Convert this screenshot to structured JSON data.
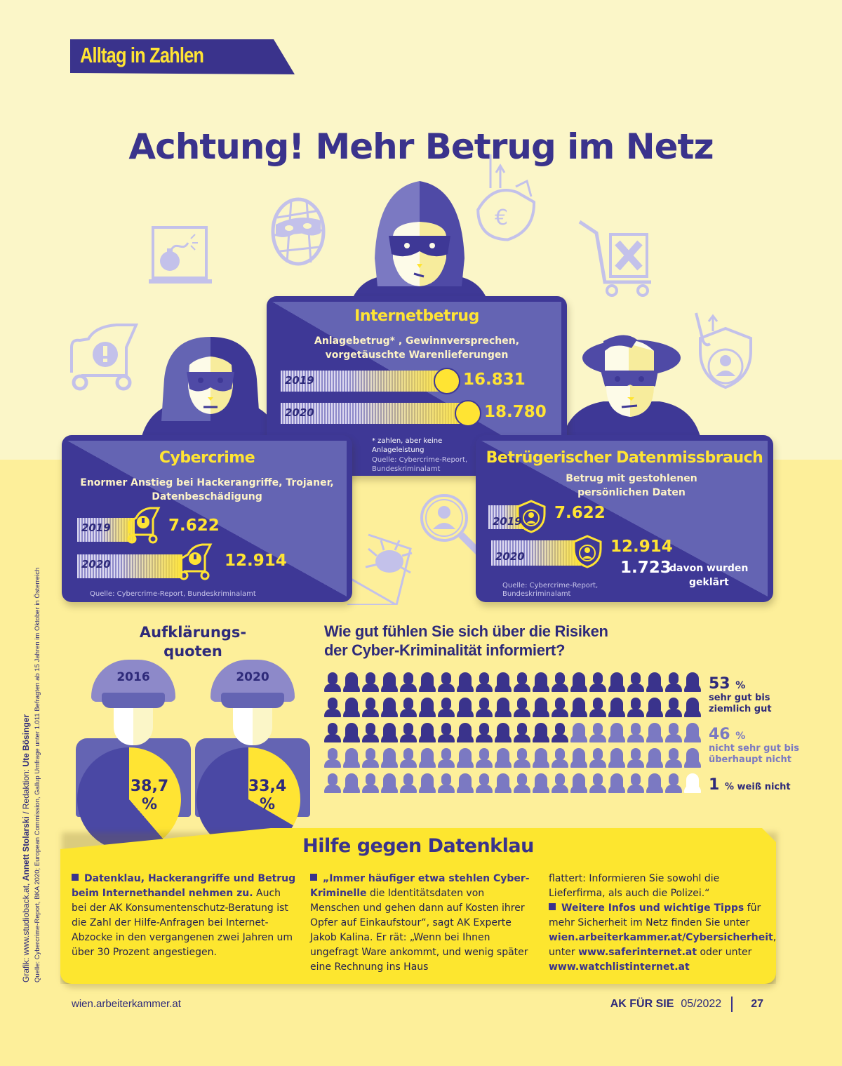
{
  "header": {
    "tag": "Alltag in Zahlen",
    "title": "Achtung! Mehr Betrug im Netz"
  },
  "colors": {
    "navy": "#3a338c",
    "card": "#3e3896",
    "card_light": "#6464b3",
    "yellow": "#ffe433",
    "light_purple": "#c3c1ea",
    "bg_top": "#fbf6c8",
    "bg_bottom": "#fdef9a"
  },
  "cards": {
    "internetbetrug": {
      "title": "Internetbetrug",
      "subtitle_1": "Anlagebetrug* , Gewinnversprechen,",
      "subtitle_2": "vorgetäuschte Warenlieferungen",
      "rows": [
        {
          "year": "2019",
          "value": "16.831"
        },
        {
          "year": "2020",
          "value": "18.780"
        }
      ],
      "footnote_1": "* zahlen, aber keine",
      "footnote_2": "Anlageleistung",
      "source_1": "Quelle: Cybercrime-Report,",
      "source_2": "Bundeskriminalamt"
    },
    "cybercrime": {
      "title": "Cybercrime",
      "subtitle_1": "Enormer Anstieg bei Hackerangriffe, Trojaner,",
      "subtitle_2": "Datenbeschädigung",
      "rows": [
        {
          "year": "2019",
          "value": "7.622"
        },
        {
          "year": "2020",
          "value": "12.914"
        }
      ],
      "source": "Quelle: Cybercrime-Report, Bundeskriminalamt"
    },
    "datenmissbrauch": {
      "title": "Betrügerischer Datenmissbrauch",
      "subtitle_1": "Betrug mit gestohlenen",
      "subtitle_2": "persönlichen Daten",
      "rows": [
        {
          "year": "2019",
          "value": "7.622"
        },
        {
          "year": "2020",
          "value": "12.914"
        }
      ],
      "cleared_value": "1.723",
      "cleared_label_1": "davon wurden",
      "cleared_label_2": "geklärt",
      "source_1": "Quelle: Cybercrime-Report,",
      "source_2": "Bundeskriminalamt"
    }
  },
  "credits": {
    "line1_prefix": "Grafik: www.studioback.at, ",
    "line1_artist": "Annett Stolarski",
    "line1_mid": " / Redaktion: ",
    "line1_editor": "Ute Bösinger",
    "line2": "Quelle: Cybercrime-Report, BKA 2020; European Commission, Gallup Umfrage unter 1.011 Befragten ab 15 Jahren im Oktober in Österreich"
  },
  "aufklaerung": {
    "title_1": "Aufklärungs-",
    "title_2": "quoten",
    "items": [
      {
        "year": "2016",
        "value": "38,7",
        "unit": "%"
      },
      {
        "year": "2020",
        "value": "33,4",
        "unit": "%"
      }
    ]
  },
  "survey": {
    "title_1": "Wie gut fühlen Sie sich über die Risiken",
    "title_2": "der Cyber-Kriminalität informiert?",
    "legend": [
      {
        "pct": "53",
        "unit": "%",
        "label_1": "sehr gut bis",
        "label_2": "ziemlich gut"
      },
      {
        "pct": "46",
        "unit": "%",
        "label_1": "nicht sehr gut bis",
        "label_2": "überhaupt nicht"
      },
      {
        "pct": "1",
        "unit": "% weiß nicht"
      }
    ]
  },
  "help": {
    "title": "Hilfe gegen Datenklau",
    "col1_bold": "Datenklau, Hackerangriffe und Betrug beim Internethandel nehmen zu.",
    "col1_text": " Auch bei der AK Konsumentenschutz-Beratung ist die Zahl der Hilfe-Anfragen bei Internet-Abzocke in den vergangenen zwei Jahren um über 30 Prozent angestiegen.",
    "col2_bold": "„Immer häufiger etwa stehlen Cyber-Kriminelle",
    "col2_text": " die Identitätsdaten von Menschen und gehen dann auf Kosten ihrer Opfer auf Einkaufstour“, sagt AK Experte Jakob Kalina. Er rät: „Wenn bei Ihnen ungefragt Ware ankommt, und wenig später eine Rechnung ins Haus",
    "col3_text1": "flattert: Informieren Sie sowohl die Lieferfirma, als auch die Polizei.“",
    "col3_bold": "Weitere Infos und wichtige Tipps",
    "col3_text2": " für mehr Sicherheit im Netz finden Sie unter ",
    "link1": "wien.arbeiterkammer.at/Cybersicherheit",
    "col3_text3": ", unter ",
    "link2": "www.saferinternet.at",
    "col3_text4": " oder unter ",
    "link3": "www.watchlistinternet.at"
  },
  "footer": {
    "site": "wien.arbeiterkammer.at",
    "magazine": "AK FÜR SIE",
    "issue": "05/2022",
    "page": "27"
  },
  "chart_data": [
    {
      "type": "bar",
      "title": "Internetbetrug",
      "subtitle": "Anlagebetrug*, Gewinnversprechen, vorgetäuschte Warenlieferungen",
      "categories": [
        "2019",
        "2020"
      ],
      "values": [
        16831,
        18780
      ],
      "note": "* zahlen, aber keine Anlageleistung",
      "source": "Cybercrime-Report, Bundeskriminalamt"
    },
    {
      "type": "bar",
      "title": "Cybercrime",
      "subtitle": "Enormer Anstieg bei Hackerangriffe, Trojaner, Datenbeschädigung",
      "categories": [
        "2019",
        "2020"
      ],
      "values": [
        7622,
        12914
      ],
      "source": "Cybercrime-Report, Bundeskriminalamt"
    },
    {
      "type": "bar",
      "title": "Betrügerischer Datenmissbrauch",
      "subtitle": "Betrug mit gestohlenen persönlichen Daten",
      "categories": [
        "2019",
        "2020"
      ],
      "values": [
        7622,
        12914
      ],
      "annotations": [
        "1.723 davon wurden geklärt (2020)"
      ],
      "source": "Cybercrime-Report, Bundeskriminalamt"
    },
    {
      "type": "pie",
      "title": "Aufklärungsquoten",
      "categories": [
        "2016",
        "2020"
      ],
      "values": [
        38.7,
        33.4
      ],
      "unit": "%"
    },
    {
      "type": "pie",
      "title": "Wie gut fühlen Sie sich über die Risiken der Cyber-Kriminalität informiert?",
      "categories": [
        "sehr gut bis ziemlich gut",
        "nicht sehr gut bis überhaupt nicht",
        "weiß nicht"
      ],
      "values": [
        53,
        46,
        1
      ],
      "unit": "%",
      "representation": "pictogram 100 persons (20x5)"
    }
  ]
}
